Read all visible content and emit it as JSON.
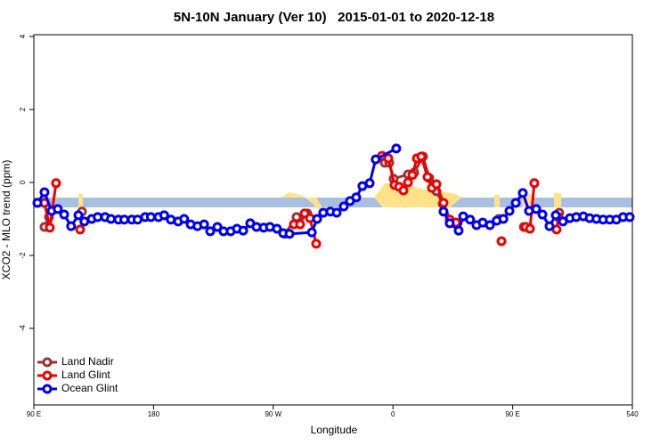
{
  "chart_data": {
    "type": "line",
    "title": "5N-10N January (Ver 10)   2015-01-01 to 2020-12-18",
    "x_label": "Longitude",
    "y_label": "XCO2 - MLO trend (ppm)",
    "xlim": [
      90,
      540
    ],
    "ylim": [
      -6.1,
      4.05
    ],
    "xticks": [
      {
        "value": 90,
        "label": "90 E"
      },
      180,
      {
        "value": 270,
        "label": "90 W"
      },
      {
        "value": 360,
        "label": "0"
      },
      {
        "value": 450,
        "label": "90 E"
      },
      540
    ],
    "yticks": [
      4,
      2,
      0,
      -2,
      -4
    ],
    "legend": "bottom-left",
    "series": [
      {
        "name": "Land Nadir",
        "color": "#993333",
        "x": [
          98,
          101.4,
          null,
          126.2,
          null,
          278.8,
          287.5,
          295.6,
          null,
          353.8,
          357.2,
          360.5,
          371.3,
          376,
          382.6,
          387.3,
          392.7,
          397.4,
          402.7,
          null,
          439.6,
          null,
          458.4,
          null,
          485
        ],
        "values": [
          -1.22,
          -0.95,
          null,
          -0.8,
          null,
          -1.41,
          -0.95,
          -0.85,
          null,
          0.54,
          0.54,
          0.1,
          0.22,
          0.27,
          0.71,
          0.12,
          -0.24,
          -0.59,
          -1.05,
          null,
          -1,
          null,
          -1.22,
          null,
          -0.83
        ]
      },
      {
        "name": "Land Glint",
        "color": "#ee0000",
        "x": [
          98,
          102,
          106.7,
          null,
          124.8,
          null,
          285.5,
          290.2,
          293.6,
          297.6,
          302.3,
          null,
          351.8,
          356.5,
          361.2,
          364.6,
          367.9,
          371.3,
          374.6,
          378,
          381.3,
          386,
          389.3,
          392.7,
          398,
          402.7,
          407.4,
          null,
          441.6,
          null,
          459.7,
          463,
          466.3,
          null,
          483,
          484.4
        ],
        "values": [
          -0.56,
          -1.24,
          -0.02,
          null,
          -1.29,
          null,
          -1.15,
          -1.15,
          -0.85,
          -0.98,
          -1.68,
          null,
          0.73,
          0.66,
          -0.07,
          -0.12,
          -0.22,
          0,
          0.2,
          0.66,
          0.71,
          0.15,
          -0.15,
          -0.05,
          -0.56,
          -1.02,
          -1.1,
          null,
          -1.61,
          null,
          -1.22,
          -1.27,
          -0.02,
          null,
          -1.29,
          -0.95
        ]
      },
      {
        "name": "Ocean Glint",
        "color": "#0000ee",
        "x": [
          92.7,
          98,
          103.4,
          108,
          112.8,
          118,
          123.5,
          128,
          133.5,
          138,
          143.6,
          148,
          153.6,
          158,
          163.7,
          168,
          173.7,
          178,
          183.7,
          188,
          193,
          198.5,
          203,
          207.9,
          213,
          218,
          222.6,
          228,
          232.6,
          238,
          242.7,
          247.4,
          252.7,
          257.4,
          262.8,
          267.5,
          272.8,
          277.5,
          282.2,
          299,
          303,
          307.6,
          313,
          317.7,
          323,
          327.7,
          332.4,
          337,
          342.5,
          347,
          362.5,
          null,
          398,
          402.7,
          409.4,
          412.8,
          418,
          422.8,
          427.5,
          432.9,
          438,
          443,
          447.6,
          452.3,
          457.6,
          462.3,
          467.7,
          472.4,
          477.7,
          482.4,
          487.8,
          493,
          497.8,
          503.2,
          507.9,
          513,
          518,
          523,
          528,
          533,
          538
        ],
        "values": [
          -0.56,
          -0.27,
          -0.78,
          -0.73,
          -0.88,
          -1.2,
          -0.9,
          -1.07,
          -1,
          -0.95,
          -0.95,
          -1,
          -1.02,
          -1.02,
          -1.02,
          -1.02,
          -0.95,
          -0.95,
          -0.95,
          -0.9,
          -1.02,
          -1.07,
          -1,
          -1.15,
          -1.2,
          -1.15,
          -1.34,
          -1.22,
          -1.34,
          -1.34,
          -1.27,
          -1.32,
          -1.12,
          -1.22,
          -1.24,
          -1.22,
          -1.27,
          -1.39,
          -1.41,
          -1.37,
          -1,
          -0.83,
          -0.8,
          -0.83,
          -0.66,
          -0.51,
          -0.41,
          -0.1,
          -0.02,
          0.63,
          0.93,
          null,
          -0.8,
          -1.12,
          -1.32,
          -0.93,
          -1.02,
          -1.17,
          -1.1,
          -1.17,
          -1.05,
          -1,
          -0.78,
          -0.56,
          -0.29,
          -0.78,
          -0.73,
          -0.88,
          -1.2,
          -0.9,
          -1.07,
          -0.98,
          -0.95,
          -0.93,
          -0.98,
          -1,
          -1.02,
          -1.02,
          -1.02,
          -0.95,
          -0.95
        ]
      }
    ]
  }
}
